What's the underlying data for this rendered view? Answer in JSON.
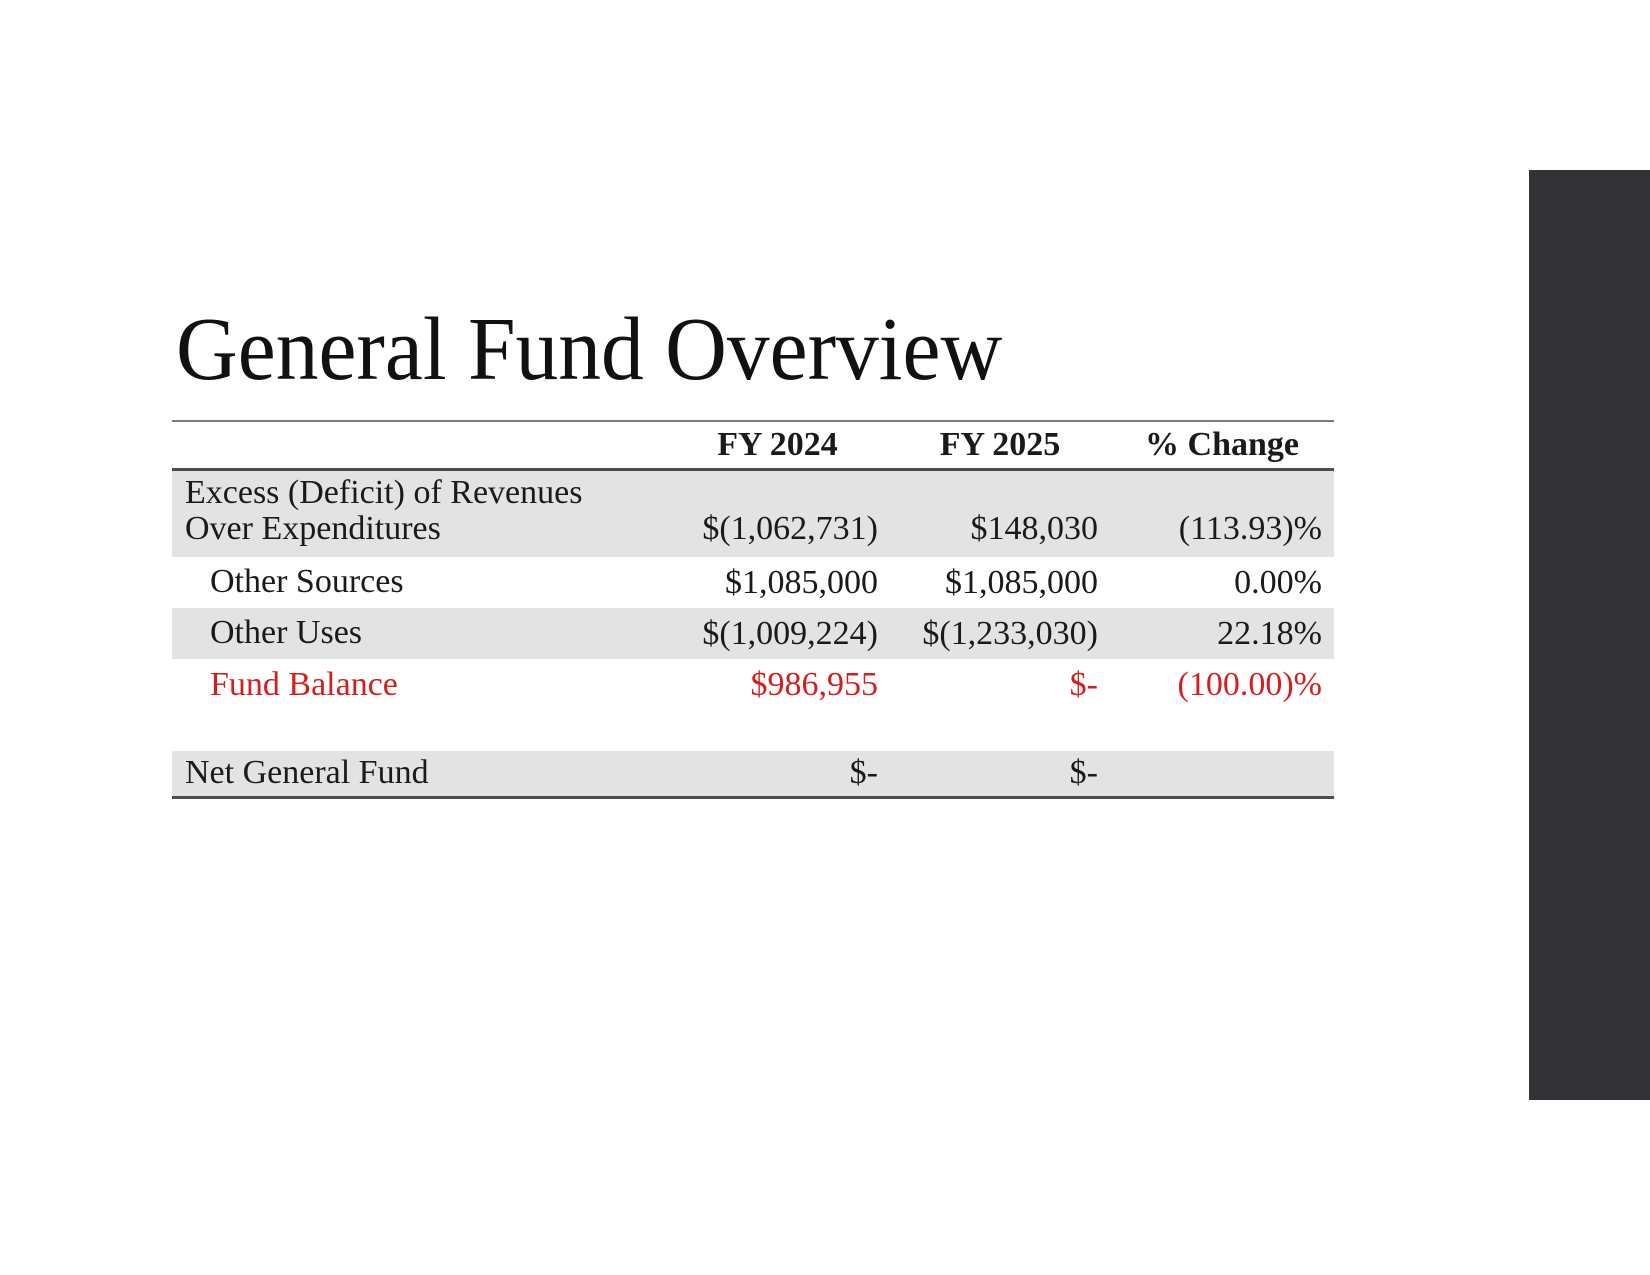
{
  "colors": {
    "accent_bar": "#333237",
    "negative_red": "#d41f1f",
    "row_shade": "#e3e3e3",
    "rule_light": "#7a7a7a",
    "rule_dark": "#4d4d4d",
    "text": "#1a1a1a"
  },
  "slide": {
    "title": "General Fund Overview"
  },
  "table": {
    "columns": [
      "",
      "FY 2024",
      "FY 2025",
      "% Change"
    ],
    "rows": [
      {
        "label_line1": "Excess (Deficit) of Revenues",
        "label_line2": "Over Expenditures",
        "fy2024": "$(1,062,731)",
        "fy2025": "$148,030",
        "pct_change": "(113.93)%"
      },
      {
        "label": "Other Sources",
        "fy2024": "$1,085,000",
        "fy2025": "$1,085,000",
        "pct_change": "0.00%"
      },
      {
        "label": "Other Uses",
        "fy2024": "$(1,009,224)",
        "fy2025": "$(1,233,030)",
        "pct_change": "22.18%"
      },
      {
        "label": "Fund Balance",
        "fy2024": "$986,955",
        "fy2025": "$-",
        "pct_change": "(100.00)%"
      },
      {
        "label": "Net General Fund",
        "fy2024": "$-",
        "fy2025": "$-",
        "pct_change": ""
      }
    ]
  }
}
